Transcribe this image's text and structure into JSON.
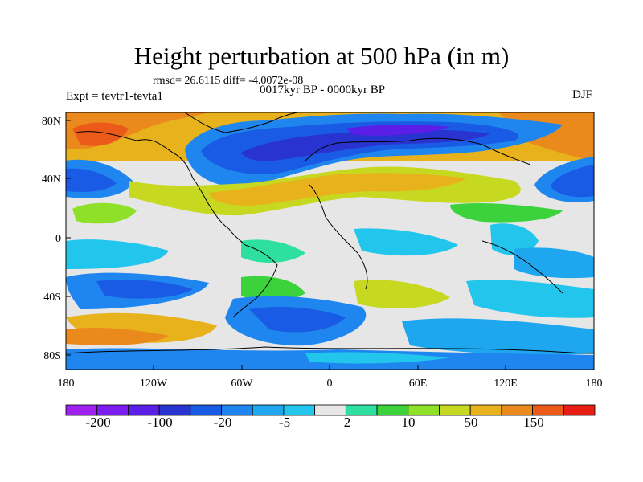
{
  "title": "Height perturbation at 500 hPa (in m)",
  "stats": "rmsd= 26.6115 diff= -4.0072e-08",
  "subtitle": "0017kyr BP - 0000kyr BP",
  "experiment": "Expt = tevtr1-tevta1",
  "season": "DJF",
  "lat_ticks": [
    "80N",
    "40N",
    "0",
    "40S",
    "80S"
  ],
  "lon_ticks": [
    "180",
    "120W",
    "60W",
    "0",
    "60E",
    "120E",
    "180"
  ],
  "colorbar": {
    "colors": [
      "#a020f0",
      "#7b1cf0",
      "#5a1ee6",
      "#2833d0",
      "#1a5be6",
      "#1f86ef",
      "#1ea7ee",
      "#22c6ec",
      "#e6e6e6",
      "#2de0a0",
      "#3cd23c",
      "#8ee028",
      "#c7d820",
      "#e8b21c",
      "#eb8a1c",
      "#ec5a1a",
      "#e81e14"
    ],
    "labels": [
      "-200",
      "-100",
      "-20",
      "-5",
      "2",
      "10",
      "50",
      "150"
    ]
  },
  "palette": {
    "neutral": "#e6e6e6",
    "deep_blue": "#2833d0",
    "blue": "#1a5be6",
    "light_blue": "#1ea7ee",
    "cyan": "#22c6ec",
    "teal": "#2de0a0",
    "green": "#3cd23c",
    "yellow_green": "#c7d820",
    "yellow": "#e8b21c",
    "orange": "#eb8a1c",
    "red_orange": "#ec5a1a"
  }
}
